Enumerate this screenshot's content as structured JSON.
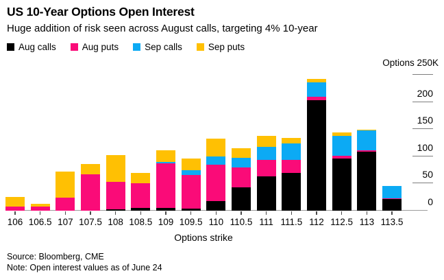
{
  "header": {
    "title": "US 10-Year Options Open Interest",
    "subtitle": "Huge addition of risk seen across August calls, targeting 4% 10-year"
  },
  "chart_data": {
    "type": "bar",
    "stacked": true,
    "title": "US 10-Year Options Open Interest",
    "categories": [
      "106",
      "106.5",
      "107",
      "107.5",
      "108",
      "108.5",
      "109",
      "109.5",
      "110",
      "110.5",
      "111",
      "111.5",
      "112",
      "112.5",
      "113",
      "113.5"
    ],
    "series": [
      {
        "name": "Aug calls",
        "color": "#000000",
        "values": [
          0,
          0,
          0,
          0,
          2,
          5,
          5,
          4,
          18,
          43,
          63,
          69,
          203,
          96,
          109,
          22
        ]
      },
      {
        "name": "Aug puts",
        "color": "#fa0b78",
        "values": [
          7,
          8,
          24,
          67,
          51,
          46,
          82,
          62,
          66,
          37,
          30,
          25,
          6,
          5,
          2,
          1
        ]
      },
      {
        "name": "Sep calls",
        "color": "#0caaf4",
        "values": [
          0,
          0,
          0,
          0,
          0,
          0,
          3,
          8,
          16,
          17,
          24,
          30,
          27,
          37,
          37,
          22
        ]
      },
      {
        "name": "Sep puts",
        "color": "#ffc003",
        "values": [
          18,
          5,
          48,
          19,
          49,
          19,
          21,
          22,
          32,
          18,
          21,
          10,
          6,
          6,
          1,
          0
        ]
      }
    ],
    "y_axis": {
      "unit_label": "Options 250K",
      "ticks": [
        0,
        50,
        100,
        150,
        200,
        250
      ],
      "ylim": [
        0,
        250
      ],
      "side": "right",
      "grid": false
    },
    "x_axis": {
      "title": "Options strike"
    },
    "legend_position": "top-left"
  },
  "footer": {
    "source": "Source: Bloomberg, CME",
    "note": "Note: Open interest values as of June 24"
  }
}
